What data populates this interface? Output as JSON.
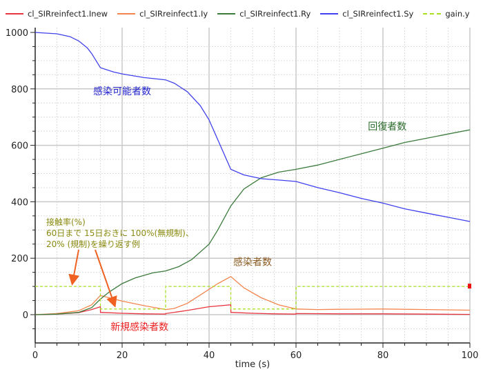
{
  "chart_data": {
    "type": "line",
    "title": "",
    "xlabel": "time (s)",
    "ylabel": "",
    "xlim": [
      0,
      100
    ],
    "ylim": [
      -100,
      1000
    ],
    "x_ticks": [
      0,
      20,
      40,
      60,
      80,
      100
    ],
    "y_ticks": [
      0,
      200,
      400,
      600,
      800,
      1000
    ],
    "grid": true,
    "legend_position": "top",
    "series": [
      {
        "name": "cl_SIRreinfect1.Inew",
        "color": "#e8323c",
        "style": "solid",
        "points": [
          [
            0,
            0
          ],
          [
            5,
            2
          ],
          [
            10,
            7
          ],
          [
            13,
            18
          ],
          [
            15,
            28
          ],
          [
            15.01,
            8
          ],
          [
            20,
            5
          ],
          [
            25,
            3
          ],
          [
            30,
            2
          ],
          [
            30.01,
            4
          ],
          [
            35,
            15
          ],
          [
            40,
            28
          ],
          [
            45,
            35
          ],
          [
            45.01,
            8
          ],
          [
            50,
            5
          ],
          [
            55,
            3
          ],
          [
            60,
            2
          ],
          [
            60.01,
            4
          ],
          [
            70,
            3
          ],
          [
            80,
            3
          ],
          [
            90,
            2
          ],
          [
            100,
            1
          ]
        ]
      },
      {
        "name": "cl_SIRreinfect1.Iy",
        "color": "#f4844c",
        "style": "solid",
        "points": [
          [
            0,
            0
          ],
          [
            5,
            4
          ],
          [
            10,
            14
          ],
          [
            13,
            35
          ],
          [
            15,
            68
          ],
          [
            17,
            60
          ],
          [
            20,
            48
          ],
          [
            25,
            32
          ],
          [
            30,
            18
          ],
          [
            32,
            22
          ],
          [
            35,
            40
          ],
          [
            38,
            70
          ],
          [
            42,
            110
          ],
          [
            45,
            135
          ],
          [
            48,
            95
          ],
          [
            52,
            60
          ],
          [
            56,
            35
          ],
          [
            60,
            20
          ],
          [
            65,
            18
          ],
          [
            70,
            19
          ],
          [
            80,
            20
          ],
          [
            90,
            18
          ],
          [
            100,
            16
          ]
        ]
      },
      {
        "name": "cl_SIRreinfect1.Ry",
        "color": "#3a7a3a",
        "style": "solid",
        "points": [
          [
            0,
            0
          ],
          [
            5,
            2
          ],
          [
            10,
            8
          ],
          [
            13,
            25
          ],
          [
            15,
            55
          ],
          [
            17,
            80
          ],
          [
            20,
            110
          ],
          [
            23,
            130
          ],
          [
            27,
            148
          ],
          [
            30,
            155
          ],
          [
            33,
            170
          ],
          [
            36,
            195
          ],
          [
            40,
            250
          ],
          [
            42,
            300
          ],
          [
            45,
            385
          ],
          [
            48,
            445
          ],
          [
            52,
            485
          ],
          [
            56,
            505
          ],
          [
            60,
            515
          ],
          [
            65,
            530
          ],
          [
            70,
            550
          ],
          [
            75,
            570
          ],
          [
            80,
            590
          ],
          [
            85,
            610
          ],
          [
            90,
            625
          ],
          [
            95,
            640
          ],
          [
            100,
            655
          ]
        ]
      },
      {
        "name": "cl_SIRreinfect1.Sy",
        "color": "#4040ee",
        "style": "solid",
        "points": [
          [
            0,
            1000
          ],
          [
            5,
            995
          ],
          [
            8,
            985
          ],
          [
            10,
            970
          ],
          [
            12,
            945
          ],
          [
            13,
            925
          ],
          [
            15,
            875
          ],
          [
            18,
            860
          ],
          [
            20,
            853
          ],
          [
            25,
            840
          ],
          [
            30,
            832
          ],
          [
            32,
            820
          ],
          [
            35,
            790
          ],
          [
            38,
            740
          ],
          [
            40,
            690
          ],
          [
            42,
            620
          ],
          [
            45,
            515
          ],
          [
            48,
            495
          ],
          [
            52,
            482
          ],
          [
            56,
            477
          ],
          [
            60,
            472
          ],
          [
            65,
            450
          ],
          [
            70,
            432
          ],
          [
            75,
            412
          ],
          [
            80,
            395
          ],
          [
            85,
            375
          ],
          [
            90,
            360
          ],
          [
            95,
            345
          ],
          [
            100,
            330
          ]
        ]
      },
      {
        "name": "gain.y",
        "color": "#a8e020",
        "style": "dashed",
        "points": [
          [
            0,
            100
          ],
          [
            15,
            100
          ],
          [
            15,
            20
          ],
          [
            30,
            20
          ],
          [
            30,
            100
          ],
          [
            45,
            100
          ],
          [
            45,
            20
          ],
          [
            60,
            20
          ],
          [
            60,
            100
          ],
          [
            100,
            100
          ]
        ]
      }
    ],
    "annotations": [
      {
        "text": "感染可能者数",
        "x": 20,
        "y": 780,
        "color": "#2222cc"
      },
      {
        "text": "回復者数",
        "x": 81,
        "y": 655,
        "color": "#2a6a2a"
      },
      {
        "text": "感染者数",
        "x": 50,
        "y": 175,
        "color": "#8a5a20"
      },
      {
        "text": "新規感染者数",
        "x": 24,
        "y": -55,
        "color": "#ee2222"
      }
    ],
    "note": {
      "lines": [
        "接触率(%)",
        "60日まで 15日おきに 100%(無規制)、",
        "20% (規制)を繰り返す例"
      ],
      "color": "#8a8a10",
      "arrow_color": "#f06020"
    }
  }
}
